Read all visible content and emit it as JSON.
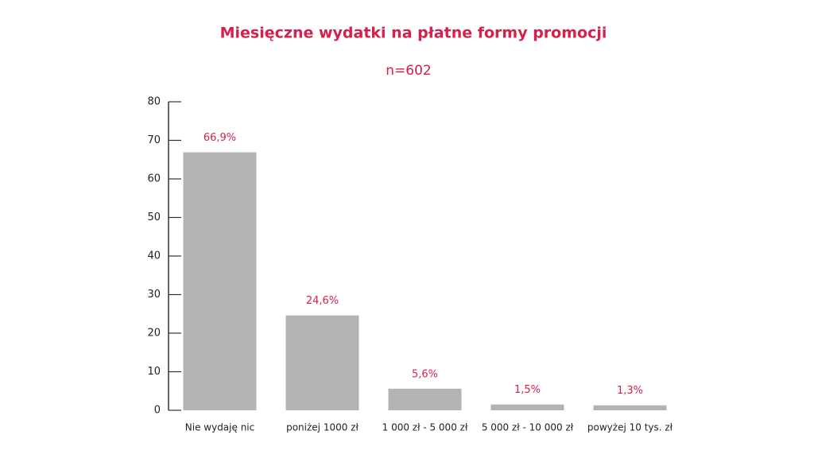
{
  "chart_data": {
    "type": "bar",
    "title": "Miesięczne wydatki na płatne formy promocji",
    "subtitle": "n=602",
    "categories": [
      "Nie wydaję nic",
      "poniżej 1000 zł",
      "1 000 zł - 5 000 zł",
      "5 000 zł - 10 000 zł",
      "powyżej 10 tys. zł"
    ],
    "values": [
      66.9,
      24.6,
      5.6,
      1.5,
      1.3
    ],
    "value_labels": [
      "66,9%",
      "24,6%",
      "5,6%",
      "1,5%",
      "1,3%"
    ],
    "color": "#b3b3b3",
    "ylim": [
      0,
      80
    ],
    "yticks": [
      0,
      10,
      20,
      30,
      40,
      50,
      60,
      70,
      80
    ],
    "grid": false
  }
}
